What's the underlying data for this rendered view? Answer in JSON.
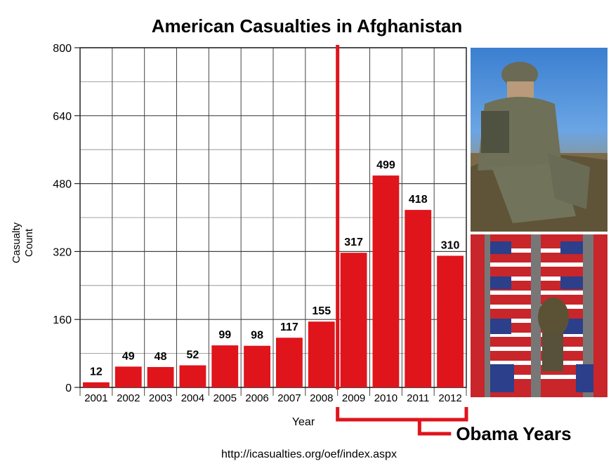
{
  "chart_data": {
    "type": "bar",
    "title": "American Casualties in Afghanistan",
    "xlabel": "Year",
    "ylabel_lines": [
      "Casualty",
      "Count"
    ],
    "categories": [
      "2001",
      "2002",
      "2003",
      "2004",
      "2005",
      "2006",
      "2007",
      "2008",
      "2009",
      "2010",
      "2011",
      "2012"
    ],
    "values": [
      12,
      49,
      48,
      52,
      99,
      98,
      117,
      155,
      317,
      499,
      418,
      310
    ],
    "data_labels": [
      "12",
      "49",
      "48",
      "52",
      "99",
      "98",
      "117",
      "155",
      "317",
      "499",
      "418",
      "310"
    ],
    "ylim": [
      0,
      800
    ],
    "yticks": [
      0,
      160,
      320,
      480,
      640,
      800
    ],
    "ytick_labels": [
      "0",
      "160",
      "320",
      "480",
      "640",
      "800"
    ],
    "grid": true,
    "bar_color": "#e0141b",
    "annotation": {
      "label": "Obama Years",
      "start_category": "2009",
      "end_category": "2012",
      "color": "#e0141b"
    },
    "source": "http://icasualties.org/oef/index.aspx"
  },
  "images": {
    "top": "soldier-photo",
    "bottom": "flag-draped-coffins-photo"
  }
}
